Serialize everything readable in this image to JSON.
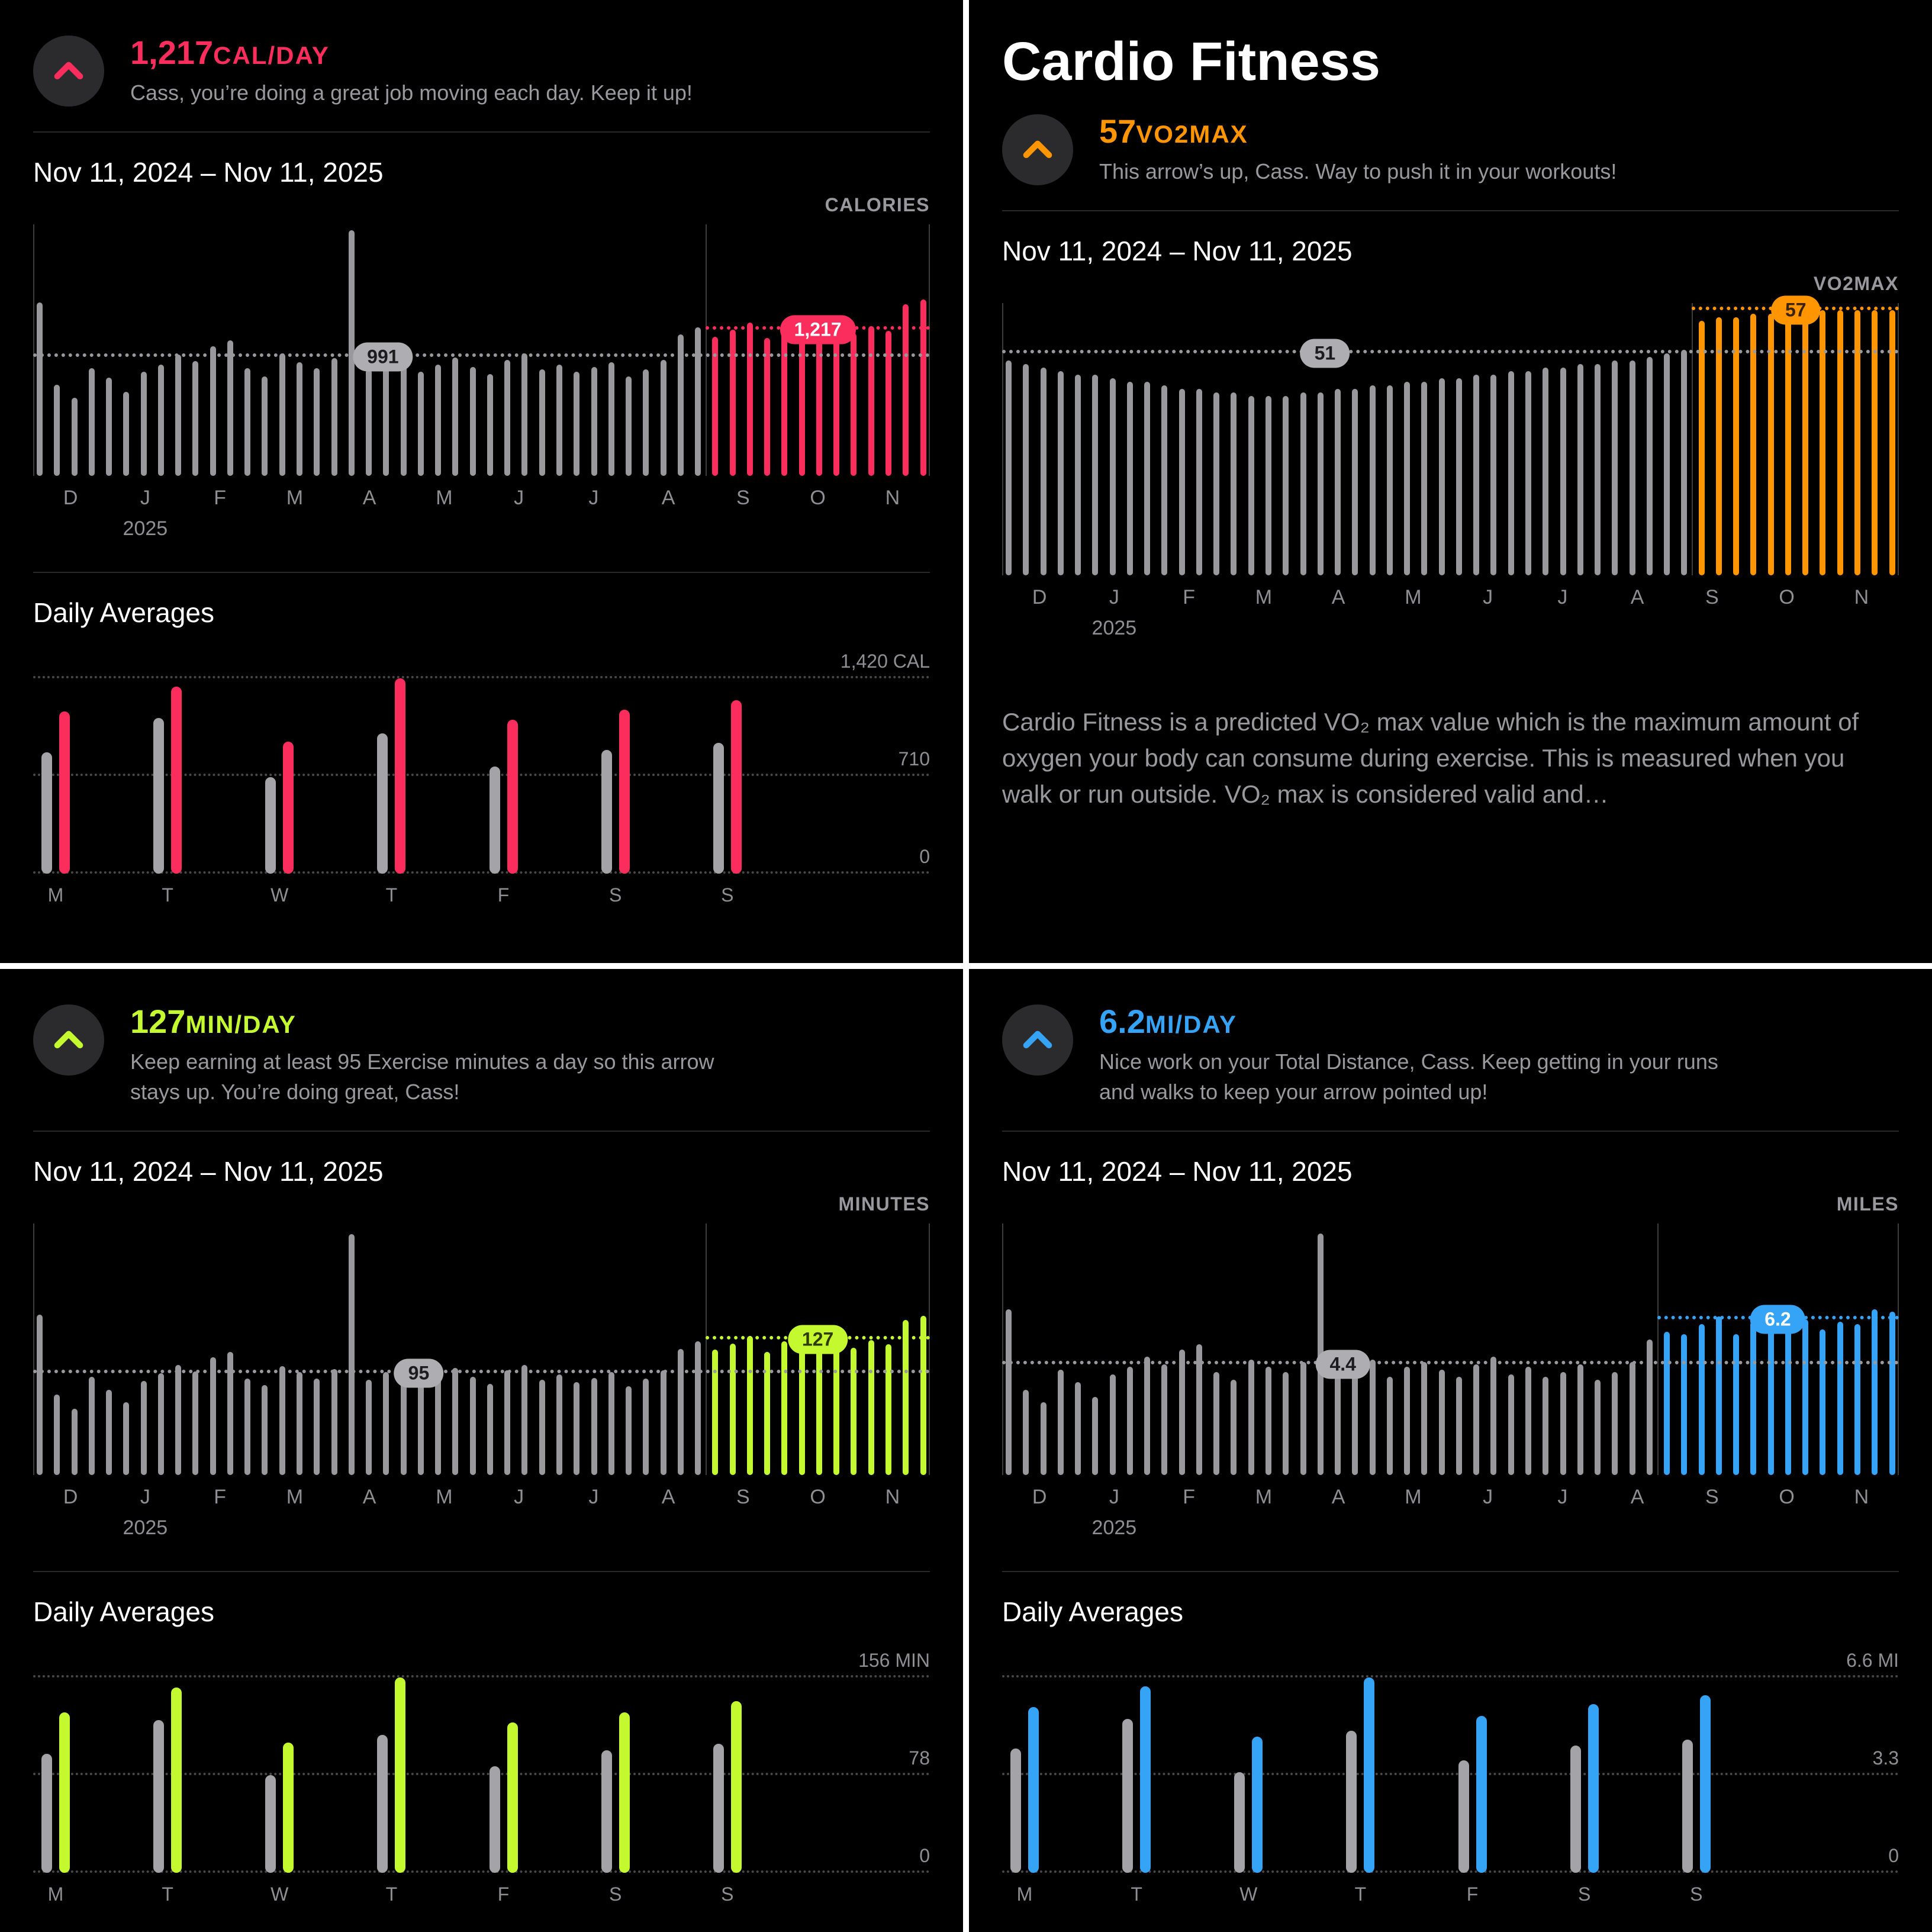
{
  "panels": [
    {
      "id": "move",
      "accent": "#fb2d5c",
      "badge_text": "#ffffff",
      "headline_value": "1,217",
      "headline_unit": "CAL/DAY",
      "message": "Cass, you’re doing a great job moving each day. Keep it up!",
      "date_range": "Nov 11, 2024 – Nov 11, 2025",
      "chart_label": "CALORIES",
      "chart_data": {
        "type": "bar",
        "ylabel": "CALORIES",
        "ylim": [
          0,
          2100
        ],
        "avg": 991,
        "avg_label": "991",
        "avg_badge_x": 39,
        "recent": 1217,
        "recent_label": "1,217",
        "colored_start": 39,
        "months": [
          "D",
          "J",
          "F",
          "M",
          "A",
          "M",
          "J",
          "J",
          "A",
          "S",
          "O",
          "N"
        ],
        "year_label": "2025",
        "values": [
          1450,
          760,
          650,
          900,
          820,
          700,
          870,
          930,
          1010,
          960,
          1080,
          1130,
          900,
          830,
          1020,
          950,
          900,
          980,
          2050,
          890,
          950,
          1010,
          870,
          930,
          990,
          910,
          850,
          970,
          1020,
          890,
          930,
          870,
          910,
          950,
          830,
          890,
          970,
          1180,
          1240,
          1160,
          1220,
          1280,
          1150,
          1240,
          1310,
          1200,
          1260,
          1190,
          1250,
          1210,
          1430,
          1470
        ]
      },
      "daily": {
        "title": "Daily Averages",
        "axis_labels": [
          "1,420 CAL",
          "710",
          "0"
        ],
        "max": 1420,
        "days": [
          "M",
          "T",
          "W",
          "T",
          "F",
          "S",
          "S"
        ],
        "gray": [
          880,
          1130,
          700,
          1020,
          780,
          900,
          950
        ],
        "colored": [
          1180,
          1360,
          960,
          1420,
          1120,
          1190,
          1260
        ]
      }
    },
    {
      "id": "cardio",
      "title": "Cardio Fitness",
      "accent": "#ff9500",
      "badge_text": "#3a2300",
      "headline_value": "57",
      "headline_unit": "VO2MAX",
      "message": "This arrow’s up, Cass. Way to push it in your workouts!",
      "date_range": "Nov 11, 2024 – Nov 11, 2025",
      "chart_label": "VO2MAX",
      "description": "Cardio Fitness is a predicted VO₂ max value which is the maximum amount of oxygen your body can consume during exercise. This is measured when you walk or run outside. VO₂ max is considered valid and…",
      "chart_data": {
        "type": "bar",
        "ylabel": "VO2MAX",
        "ylim": [
          20,
          58
        ],
        "avg": 51,
        "avg_label": "51",
        "avg_badge_x": 36,
        "recent": 57,
        "recent_label": "57",
        "colored_start": 40,
        "months": [
          "D",
          "J",
          "F",
          "M",
          "A",
          "M",
          "J",
          "J",
          "A",
          "S",
          "O",
          "N"
        ],
        "year_label": "2025",
        "values": [
          50,
          49.5,
          49,
          48.5,
          48,
          48,
          47.5,
          47,
          47,
          46.5,
          46,
          46,
          45.5,
          45.5,
          45,
          45,
          45,
          45.5,
          45.5,
          46,
          46,
          46.5,
          46.5,
          47,
          47,
          47.5,
          47.5,
          48,
          48,
          48.5,
          48.5,
          49,
          49,
          49.5,
          49.5,
          50,
          50,
          50.5,
          51,
          51.5,
          55.5,
          56,
          56,
          56.5,
          56.5,
          57,
          57,
          57,
          57,
          57,
          57,
          57
        ]
      }
    },
    {
      "id": "exercise",
      "accent": "#c4f82f",
      "badge_text": "#2f3c00",
      "headline_value": "127",
      "headline_unit": "MIN/DAY",
      "message": "Keep earning at least 95 Exercise minutes a day so this arrow stays up. You’re doing great, Cass!",
      "date_range": "Nov 11, 2024 – Nov 11, 2025",
      "chart_label": "MINUTES",
      "chart_data": {
        "type": "bar",
        "ylabel": "MINUTES",
        "ylim": [
          0,
          235
        ],
        "avg": 95,
        "avg_label": "95",
        "avg_badge_x": 43,
        "recent": 127,
        "recent_label": "127",
        "colored_start": 39,
        "months": [
          "D",
          "J",
          "F",
          "M",
          "A",
          "M",
          "J",
          "J",
          "A",
          "S",
          "O",
          "N"
        ],
        "year_label": "2025",
        "values": [
          150,
          75,
          62,
          92,
          80,
          68,
          88,
          95,
          103,
          97,
          110,
          115,
          90,
          84,
          102,
          96,
          90,
          99,
          225,
          89,
          96,
          102,
          87,
          94,
          100,
          92,
          85,
          98,
          103,
          89,
          94,
          87,
          91,
          96,
          83,
          90,
          98,
          118,
          125,
          117,
          123,
          130,
          115,
          125,
          133,
          121,
          127,
          119,
          126,
          122,
          145,
          149
        ]
      },
      "daily": {
        "title": "Daily Averages",
        "axis_labels": [
          "156 MIN",
          "78",
          "0"
        ],
        "max": 156,
        "days": [
          "M",
          "T",
          "W",
          "T",
          "F",
          "S",
          "S"
        ],
        "gray": [
          95,
          122,
          78,
          110,
          85,
          98,
          103
        ],
        "colored": [
          128,
          148,
          104,
          156,
          120,
          128,
          137
        ]
      }
    },
    {
      "id": "distance",
      "accent": "#35a3f6",
      "badge_text": "#ffffff",
      "headline_value": "6.2",
      "headline_unit": "MI/DAY",
      "message": "Nice work on your Total Distance, Cass. Keep getting in your runs and walks to keep your arrow pointed up!",
      "date_range": "Nov 11, 2024 – Nov 11, 2025",
      "chart_label": "MILES",
      "chart_data": {
        "type": "bar",
        "ylabel": "MILES",
        "ylim": [
          0,
          10
        ],
        "avg": 4.4,
        "avg_label": "4.4",
        "avg_badge_x": 38,
        "recent": 6.2,
        "recent_label": "6.2",
        "colored_start": 38,
        "months": [
          "D",
          "J",
          "F",
          "M",
          "A",
          "M",
          "J",
          "J",
          "A",
          "S",
          "O",
          "N"
        ],
        "year_label": "2025",
        "values": [
          6.6,
          3.4,
          2.9,
          4.2,
          3.7,
          3.1,
          4.0,
          4.3,
          4.7,
          4.4,
          5.0,
          5.2,
          4.1,
          3.8,
          4.6,
          4.3,
          4.1,
          4.5,
          9.6,
          4.0,
          4.4,
          4.6,
          3.9,
          4.3,
          4.5,
          4.2,
          3.9,
          4.4,
          4.7,
          4.0,
          4.3,
          3.9,
          4.1,
          4.4,
          3.8,
          4.1,
          4.5,
          5.4,
          5.7,
          5.6,
          6.0,
          6.3,
          5.6,
          6.1,
          6.5,
          5.9,
          6.2,
          5.8,
          6.1,
          6.0,
          6.6,
          6.5
        ]
      },
      "daily": {
        "title": "Daily Averages",
        "axis_labels": [
          "6.6 MI",
          "3.3",
          "0"
        ],
        "max": 6.6,
        "days": [
          "M",
          "T",
          "W",
          "T",
          "F",
          "S",
          "S"
        ],
        "gray": [
          4.2,
          5.2,
          3.4,
          4.8,
          3.8,
          4.3,
          4.5
        ],
        "colored": [
          5.6,
          6.3,
          4.6,
          6.6,
          5.3,
          5.7,
          6.0
        ]
      }
    }
  ]
}
